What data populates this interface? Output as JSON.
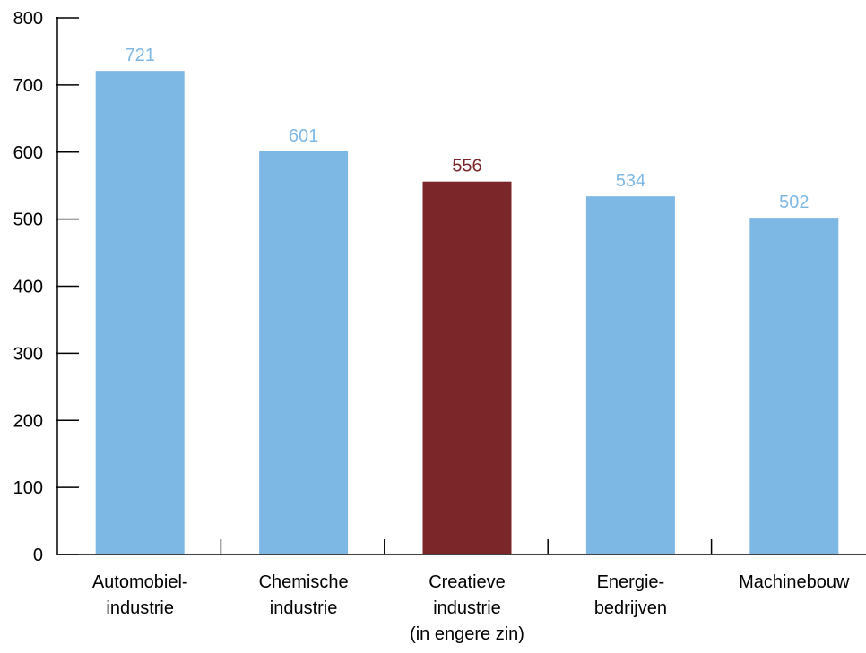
{
  "chart_data": {
    "type": "bar",
    "categories": [
      [
        "Automobiel-",
        "industrie"
      ],
      [
        "Chemische",
        "industrie"
      ],
      [
        "Creatieve",
        "industrie",
        "(in engere zin)"
      ],
      [
        "Energie-",
        "bedrijven"
      ],
      [
        "Machinebouw"
      ]
    ],
    "values": [
      721,
      601,
      556,
      534,
      502
    ],
    "value_labels": [
      "721",
      "601",
      "556",
      "534",
      "502"
    ],
    "highlight_index": 2,
    "ylim": [
      0,
      800
    ],
    "yticks": [
      0,
      100,
      200,
      300,
      400,
      500,
      600,
      700,
      800
    ],
    "ytick_labels": [
      "0",
      "100",
      "200",
      "300",
      "400",
      "500",
      "600",
      "700",
      "800"
    ],
    "grid": false,
    "title": "",
    "xlabel": "",
    "ylabel": "",
    "colors": {
      "bar": "#7db8e5",
      "highlight": "#7b2629",
      "axis": "#000000"
    }
  }
}
